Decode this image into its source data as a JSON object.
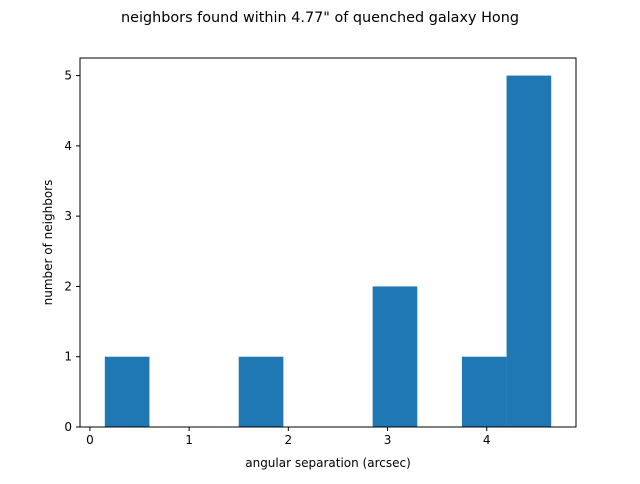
{
  "chart_data": {
    "type": "bar",
    "title": "neighbors found within 4.77\" of quenched galaxy Hong",
    "xlabel": "angular separation (arcsec)",
    "ylabel": "number of neighbors",
    "bins": [
      {
        "x0": 0.15,
        "x1": 0.6,
        "count": 1
      },
      {
        "x0": 0.6,
        "x1": 1.05,
        "count": 0
      },
      {
        "x0": 1.05,
        "x1": 1.5,
        "count": 0
      },
      {
        "x0": 1.5,
        "x1": 1.95,
        "count": 1
      },
      {
        "x0": 1.95,
        "x1": 2.4,
        "count": 0
      },
      {
        "x0": 2.4,
        "x1": 2.85,
        "count": 0
      },
      {
        "x0": 2.85,
        "x1": 3.3,
        "count": 2
      },
      {
        "x0": 3.3,
        "x1": 3.75,
        "count": 0
      },
      {
        "x0": 3.75,
        "x1": 4.2,
        "count": 1
      },
      {
        "x0": 4.2,
        "x1": 4.65,
        "count": 5
      }
    ],
    "xlim": [
      -0.1,
      4.9
    ],
    "ylim": [
      0,
      5.25
    ],
    "xticks": [
      0,
      1,
      2,
      3,
      4
    ],
    "yticks": [
      0,
      1,
      2,
      3,
      4,
      5
    ],
    "bar_color": "#1f77b4",
    "grid": false,
    "legend": "none"
  }
}
